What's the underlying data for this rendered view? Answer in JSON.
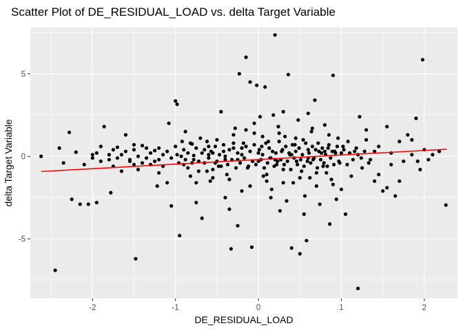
{
  "chart_data": {
    "type": "scatter",
    "title": "Scatter Plot of DE_RESIDUAL_LOAD vs. delta Target Variable",
    "xlabel": "DE_RESIDUAL_LOAD",
    "ylabel": "delta Target Variable",
    "xlim": [
      -2.75,
      2.4
    ],
    "ylim": [
      -8.6,
      7.8
    ],
    "x_ticks": [
      -2,
      -1,
      0,
      1,
      2
    ],
    "y_ticks": [
      -5,
      0,
      5
    ],
    "grid": true,
    "legend": "none",
    "colors": {
      "panel": "#ebebeb",
      "grid": "#ffffff",
      "points": "#000000",
      "fit_line": "#ff0000"
    },
    "fit_line": {
      "x": [
        -2.62,
        2.27
      ],
      "y": [
        -0.92,
        0.43
      ]
    },
    "points": [
      [
        -2.62,
        0.0
      ],
      [
        -2.45,
        -6.9
      ],
      [
        -2.4,
        0.5
      ],
      [
        -2.35,
        -0.4
      ],
      [
        -2.28,
        1.45
      ],
      [
        -2.25,
        -2.6
      ],
      [
        -2.2,
        0.25
      ],
      [
        -2.15,
        -2.9
      ],
      [
        -2.05,
        -2.9
      ],
      [
        -2.0,
        -0.1
      ],
      [
        -1.95,
        -2.8
      ],
      [
        -1.9,
        0.6
      ],
      [
        -1.86,
        1.8
      ],
      [
        -1.8,
        0.1
      ],
      [
        -1.75,
        -0.6
      ],
      [
        -1.7,
        0.55
      ],
      [
        -1.65,
        -0.9
      ],
      [
        -1.6,
        1.3
      ],
      [
        -1.55,
        -0.3
      ],
      [
        -1.5,
        0.4
      ],
      [
        -1.48,
        -6.2
      ],
      [
        -1.45,
        -0.8
      ],
      [
        -1.4,
        0.65
      ],
      [
        -1.35,
        -0.1
      ],
      [
        -1.3,
        -0.5
      ],
      [
        -1.25,
        0.35
      ],
      [
        -1.2,
        -1.0
      ],
      [
        -1.15,
        0.1
      ],
      [
        -1.1,
        -1.6
      ],
      [
        -1.08,
        2.0
      ],
      [
        -1.05,
        -3.0
      ],
      [
        -1.0,
        3.35
      ],
      [
        -0.98,
        3.15
      ],
      [
        -0.95,
        -4.8
      ],
      [
        -0.92,
        0.9
      ],
      [
        -0.9,
        -0.5
      ],
      [
        -0.88,
        1.5
      ],
      [
        -0.85,
        0.2
      ],
      [
        -0.82,
        -1.2
      ],
      [
        -0.8,
        0.75
      ],
      [
        -0.78,
        0.05
      ],
      [
        -0.75,
        -2.8
      ],
      [
        -0.72,
        -0.3
      ],
      [
        -0.7,
        1.1
      ],
      [
        -0.68,
        -3.75
      ],
      [
        -0.65,
        0.4
      ],
      [
        -0.62,
        -0.9
      ],
      [
        -0.6,
        0.6
      ],
      [
        -0.58,
        -1.5
      ],
      [
        -0.55,
        0.2
      ],
      [
        -0.52,
        -0.4
      ],
      [
        -0.5,
        1.0
      ],
      [
        -0.48,
        -0.6
      ],
      [
        -0.45,
        2.7
      ],
      [
        -0.42,
        0.3
      ],
      [
        -0.4,
        -2.5
      ],
      [
        -0.38,
        -1.1
      ],
      [
        -0.35,
        -3.2
      ],
      [
        -0.33,
        -5.6
      ],
      [
        -0.3,
        0.5
      ],
      [
        -0.28,
        1.7
      ],
      [
        -0.25,
        -0.2
      ],
      [
        -0.23,
        5.0
      ],
      [
        -0.2,
        -2.1
      ],
      [
        -0.18,
        0.8
      ],
      [
        -0.15,
        6.0
      ],
      [
        -0.13,
        -0.7
      ],
      [
        -0.1,
        4.5
      ],
      [
        -0.08,
        -5.5
      ],
      [
        -0.05,
        1.4
      ],
      [
        -0.02,
        4.3
      ],
      [
        0.0,
        -0.3
      ],
      [
        0.02,
        2.4
      ],
      [
        0.04,
        0.6
      ],
      [
        0.06,
        -1.2
      ],
      [
        0.08,
        4.2
      ],
      [
        0.1,
        -1.5
      ],
      [
        0.12,
        0.9
      ],
      [
        0.14,
        -0.1
      ],
      [
        0.16,
        -2.0
      ],
      [
        0.18,
        2.5
      ],
      [
        0.2,
        7.35
      ],
      [
        0.22,
        -0.5
      ],
      [
        0.24,
        1.8
      ],
      [
        0.26,
        -3.3
      ],
      [
        0.28,
        0.3
      ],
      [
        0.3,
        -0.8
      ],
      [
        0.32,
        1.2
      ],
      [
        0.34,
        -2.7
      ],
      [
        0.36,
        4.95
      ],
      [
        0.38,
        0.1
      ],
      [
        0.4,
        -5.55
      ],
      [
        0.42,
        -1.6
      ],
      [
        0.44,
        0.7
      ],
      [
        0.46,
        -0.3
      ],
      [
        0.48,
        2.2
      ],
      [
        0.5,
        -5.9
      ],
      [
        0.52,
        -0.9
      ],
      [
        0.54,
        1.0
      ],
      [
        0.56,
        -2.4
      ],
      [
        0.58,
        -5.1
      ],
      [
        0.6,
        0.4
      ],
      [
        0.62,
        -1.3
      ],
      [
        0.64,
        1.5
      ],
      [
        0.66,
        -0.2
      ],
      [
        0.68,
        3.4
      ],
      [
        0.7,
        -1.8
      ],
      [
        0.72,
        0.8
      ],
      [
        0.74,
        -2.9
      ],
      [
        0.76,
        0.2
      ],
      [
        0.78,
        -0.6
      ],
      [
        0.8,
        1.9
      ],
      [
        0.82,
        -1.0
      ],
      [
        0.84,
        0.5
      ],
      [
        0.86,
        -4.1
      ],
      [
        0.88,
        -1.4
      ],
      [
        0.9,
        4.9
      ],
      [
        0.92,
        0.3
      ],
      [
        0.94,
        -2.6
      ],
      [
        0.96,
        1.1
      ],
      [
        0.98,
        -0.4
      ],
      [
        1.0,
        -2.0
      ],
      [
        1.02,
        0.6
      ],
      [
        1.05,
        -3.5
      ],
      [
        1.08,
        0.9
      ],
      [
        1.12,
        -1.2
      ],
      [
        1.16,
        0.3
      ],
      [
        1.2,
        -8.0
      ],
      [
        1.22,
        2.4
      ],
      [
        1.25,
        -0.7
      ],
      [
        1.3,
        1.0
      ],
      [
        1.35,
        -0.2
      ],
      [
        1.4,
        -1.5
      ],
      [
        1.45,
        0.6
      ],
      [
        1.5,
        -2.1
      ],
      [
        1.55,
        1.8
      ],
      [
        1.6,
        -0.5
      ],
      [
        1.65,
        -2.4
      ],
      [
        1.7,
        0.9
      ],
      [
        1.75,
        -0.3
      ],
      [
        1.8,
        1.3
      ],
      [
        1.85,
        0.1
      ],
      [
        1.9,
        2.3
      ],
      [
        1.95,
        -0.8
      ],
      [
        1.98,
        5.85
      ],
      [
        2.0,
        0.4
      ],
      [
        2.05,
        -0.2
      ],
      [
        2.1,
        0.1
      ],
      [
        2.18,
        0.3
      ],
      [
        2.26,
        -2.95
      ],
      [
        -0.9,
        0.4
      ],
      [
        -0.85,
        -0.7
      ],
      [
        -0.82,
        0.8
      ],
      [
        -0.78,
        -0.2
      ],
      [
        -0.75,
        0.5
      ],
      [
        -0.72,
        -0.9
      ],
      [
        -0.68,
        0.2
      ],
      [
        -0.65,
        -0.4
      ],
      [
        -0.62,
        0.9
      ],
      [
        -0.6,
        -0.1
      ],
      [
        -0.57,
        0.3
      ],
      [
        -0.55,
        -0.8
      ],
      [
        -0.52,
        0.6
      ],
      [
        -0.5,
        -0.3
      ],
      [
        -0.47,
        0.1
      ],
      [
        -0.45,
        -0.6
      ],
      [
        -0.42,
        0.7
      ],
      [
        -0.4,
        0.0
      ],
      [
        -0.37,
        -0.5
      ],
      [
        -0.35,
        0.4
      ],
      [
        -0.32,
        -0.2
      ],
      [
        -0.3,
        0.8
      ],
      [
        -0.27,
        -0.7
      ],
      [
        -0.25,
        0.2
      ],
      [
        -0.22,
        -0.4
      ],
      [
        -0.2,
        0.5
      ],
      [
        -0.17,
        -0.1
      ],
      [
        -0.15,
        0.6
      ],
      [
        -0.12,
        -0.6
      ],
      [
        -0.1,
        0.3
      ],
      [
        -0.07,
        -0.3
      ],
      [
        -0.05,
        0.7
      ],
      [
        -0.03,
        -0.5
      ],
      [
        0.01,
        0.4
      ],
      [
        0.03,
        -0.2
      ],
      [
        0.05,
        0.1
      ],
      [
        0.07,
        -0.7
      ],
      [
        0.09,
        0.8
      ],
      [
        0.11,
        -0.4
      ],
      [
        0.13,
        0.5
      ],
      [
        0.15,
        -0.1
      ],
      [
        0.17,
        0.3
      ],
      [
        0.19,
        -0.6
      ],
      [
        0.21,
        0.2
      ],
      [
        0.23,
        -0.3
      ],
      [
        0.25,
        0.9
      ],
      [
        0.27,
        -0.2
      ],
      [
        0.29,
        0.4
      ],
      [
        0.31,
        -0.5
      ],
      [
        0.33,
        0.6
      ],
      [
        0.35,
        -0.3
      ],
      [
        0.37,
        0.2
      ],
      [
        0.39,
        -0.8
      ],
      [
        0.41,
        0.7
      ],
      [
        0.43,
        -0.1
      ],
      [
        0.45,
        0.3
      ],
      [
        0.47,
        -0.5
      ],
      [
        0.49,
        0.5
      ],
      [
        0.51,
        -0.2
      ],
      [
        0.53,
        0.1
      ],
      [
        0.55,
        -0.6
      ],
      [
        0.57,
        0.8
      ],
      [
        0.59,
        -0.3
      ],
      [
        0.61,
        0.2
      ],
      [
        0.63,
        -0.4
      ],
      [
        0.65,
        0.6
      ],
      [
        0.67,
        -0.1
      ],
      [
        0.69,
        0.4
      ],
      [
        0.71,
        -0.7
      ],
      [
        0.73,
        0.3
      ],
      [
        0.75,
        -0.2
      ],
      [
        0.77,
        0.5
      ],
      [
        0.79,
        -0.4
      ],
      [
        0.81,
        0.1
      ],
      [
        0.83,
        -0.6
      ],
      [
        0.85,
        0.7
      ],
      [
        0.87,
        -0.1
      ],
      [
        0.89,
        0.3
      ],
      [
        0.91,
        -0.5
      ],
      [
        0.93,
        0.2
      ],
      [
        0.95,
        0.6
      ],
      [
        0.97,
        -0.3
      ],
      [
        1.03,
        0.4
      ],
      [
        1.07,
        -0.5
      ],
      [
        1.1,
        0.2
      ],
      [
        1.14,
        -0.2
      ],
      [
        1.18,
        0.5
      ],
      [
        1.24,
        -0.1
      ],
      [
        1.28,
        0.3
      ],
      [
        1.33,
        -0.4
      ],
      [
        -1.3,
        0.2
      ],
      [
        -1.25,
        -0.3
      ],
      [
        -1.2,
        0.5
      ],
      [
        -1.15,
        -0.6
      ],
      [
        -1.1,
        0.3
      ],
      [
        -1.05,
        -0.1
      ],
      [
        -1.0,
        0.6
      ],
      [
        -0.96,
        -0.4
      ],
      [
        -0.93,
        0.0
      ],
      [
        -0.88,
        -0.2
      ],
      [
        -1.6,
        0.3
      ],
      [
        -1.55,
        -0.2
      ],
      [
        -1.5,
        0.7
      ],
      [
        -1.45,
        0.0
      ],
      [
        -1.4,
        -0.4
      ],
      [
        -1.35,
        0.5
      ],
      [
        -1.8,
        -0.2
      ],
      [
        -1.75,
        0.4
      ],
      [
        -1.7,
        -0.1
      ],
      [
        -1.95,
        0.2
      ],
      [
        -2.1,
        -0.5
      ],
      [
        -2.0,
        0.1
      ],
      [
        -1.9,
        -0.3
      ],
      [
        -1.65,
        0.1
      ],
      [
        -1.5,
        -0.5
      ],
      [
        -1.2,
        -0.2
      ],
      [
        -0.98,
        0.1
      ],
      [
        -0.8,
        -0.4
      ],
      [
        -0.6,
        0.1
      ],
      [
        -0.4,
        -0.2
      ],
      [
        -0.2,
        0.1
      ],
      [
        0.0,
        0.2
      ],
      [
        0.2,
        -0.2
      ],
      [
        0.4,
        0.1
      ],
      [
        0.6,
        -0.1
      ],
      [
        0.8,
        0.3
      ],
      [
        1.0,
        0.2
      ],
      [
        1.2,
        0.1
      ],
      [
        1.4,
        0.3
      ],
      [
        1.6,
        0.2
      ],
      [
        -0.3,
        1.3
      ],
      [
        -0.15,
        1.6
      ],
      [
        0.05,
        1.2
      ],
      [
        0.25,
        1.4
      ],
      [
        0.45,
        1.1
      ],
      [
        0.65,
        1.7
      ],
      [
        0.85,
        1.3
      ],
      [
        0.6,
        2.6
      ],
      [
        0.3,
        2.7
      ],
      [
        -0.05,
        2.0
      ],
      [
        -0.35,
        -1.4
      ],
      [
        -0.1,
        -1.8
      ],
      [
        0.1,
        -1.1
      ],
      [
        0.3,
        -1.6
      ],
      [
        0.5,
        -1.3
      ],
      [
        0.7,
        -1.0
      ],
      [
        0.9,
        -1.7
      ],
      [
        -0.55,
        -1.3
      ],
      [
        -0.75,
        -1.6
      ],
      [
        0.15,
        -2.5
      ],
      [
        1.3,
        1.6
      ],
      [
        1.45,
        -1.1
      ],
      [
        1.55,
        -1.9
      ],
      [
        1.7,
        -1.5
      ],
      [
        1.85,
        1.0
      ],
      [
        1.92,
        -0.3
      ],
      [
        -1.78,
        -2.2
      ],
      [
        -1.22,
        -1.8
      ],
      [
        -0.25,
        -4.2
      ],
      [
        0.55,
        -3.5
      ]
    ]
  }
}
